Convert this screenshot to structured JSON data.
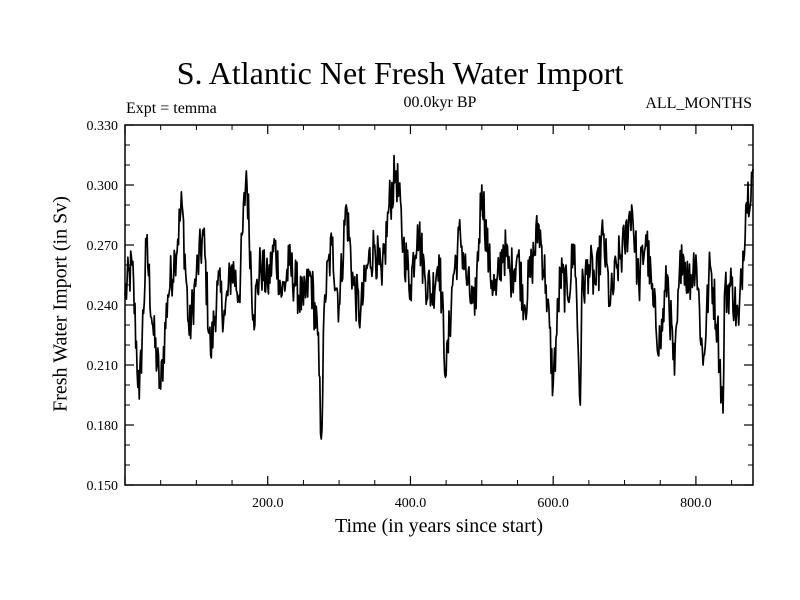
{
  "chart_data": {
    "type": "line",
    "title": "S. Atlantic Net Fresh Water Import",
    "left_label": "Expt = temma",
    "center_label": "00.0kyr BP",
    "right_label": "ALL_MONTHS",
    "xlabel": "Time (in years since start)",
    "ylabel": "Fresh Water Import (in Sv)",
    "xlim": [
      0,
      880
    ],
    "ylim": [
      0.15,
      0.33
    ],
    "x_ticks": [
      200,
      400,
      600,
      800
    ],
    "x_tick_labels": [
      "200.0",
      "400.0",
      "600.0",
      "800.0"
    ],
    "y_ticks": [
      0.15,
      0.18,
      0.21,
      0.24,
      0.27,
      0.3,
      0.33
    ],
    "y_tick_labels": [
      "0.150",
      "0.180",
      "0.210",
      "0.240",
      "0.270",
      "0.300",
      "0.330"
    ],
    "series": [
      {
        "x": [
          0,
          10,
          20,
          30,
          40,
          50,
          60,
          70,
          80,
          90,
          100,
          110,
          120,
          130,
          140,
          150,
          160,
          170,
          180,
          190,
          200,
          210,
          220,
          230,
          240,
          250,
          260,
          270,
          275,
          280,
          290,
          300,
          310,
          320,
          330,
          340,
          350,
          360,
          370,
          380,
          390,
          400,
          410,
          420,
          430,
          440,
          450,
          460,
          470,
          480,
          490,
          500,
          510,
          520,
          530,
          540,
          550,
          560,
          570,
          580,
          590,
          600,
          610,
          620,
          630,
          638,
          640,
          650,
          660,
          670,
          680,
          690,
          700,
          710,
          720,
          730,
          740,
          750,
          760,
          770,
          780,
          790,
          800,
          810,
          820,
          830,
          838,
          840,
          850,
          860,
          870,
          880
        ],
        "y": [
          0.245,
          0.26,
          0.193,
          0.27,
          0.225,
          0.198,
          0.245,
          0.265,
          0.29,
          0.225,
          0.255,
          0.275,
          0.215,
          0.25,
          0.235,
          0.26,
          0.245,
          0.307,
          0.235,
          0.26,
          0.25,
          0.27,
          0.245,
          0.26,
          0.25,
          0.24,
          0.255,
          0.225,
          0.173,
          0.245,
          0.27,
          0.24,
          0.29,
          0.25,
          0.235,
          0.26,
          0.27,
          0.25,
          0.29,
          0.307,
          0.27,
          0.25,
          0.28,
          0.255,
          0.245,
          0.265,
          0.205,
          0.255,
          0.275,
          0.25,
          0.235,
          0.3,
          0.26,
          0.245,
          0.27,
          0.255,
          0.265,
          0.24,
          0.26,
          0.28,
          0.25,
          0.2,
          0.255,
          0.245,
          0.27,
          0.19,
          0.245,
          0.26,
          0.25,
          0.275,
          0.24,
          0.26,
          0.27,
          0.29,
          0.25,
          0.275,
          0.24,
          0.22,
          0.255,
          0.205,
          0.27,
          0.25,
          0.265,
          0.21,
          0.26,
          0.23,
          0.186,
          0.245,
          0.25,
          0.23,
          0.29,
          0.308
        ]
      }
    ],
    "grid": false
  }
}
